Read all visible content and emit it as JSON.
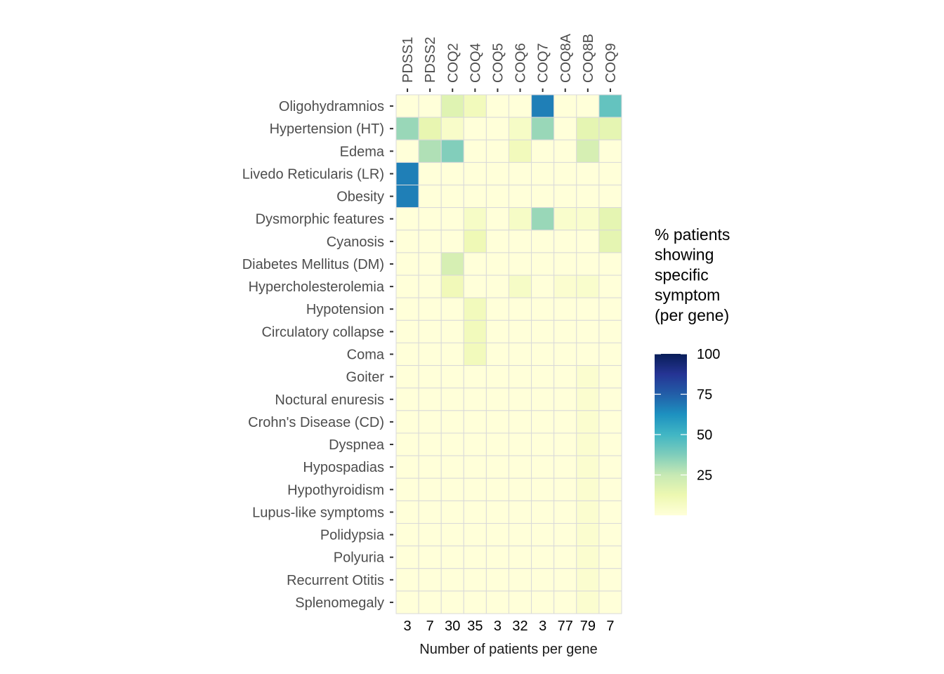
{
  "chart_data": {
    "type": "heatmap",
    "genes": [
      "PDSS1",
      "PDSS2",
      "COQ2",
      "COQ4",
      "COQ5",
      "COQ6",
      "COQ7",
      "COQ8A",
      "COQ8B",
      "COQ9"
    ],
    "patients_per_gene": [
      "3",
      "7",
      "30",
      "35",
      "3",
      "32",
      "3",
      "77",
      "79",
      "7"
    ],
    "symptoms": [
      "Oligohydramnios",
      "Hypertension (HT)",
      "Edema",
      "Livedo Reticularis (LR)",
      "Obesity",
      "Dysmorphic features",
      "Cyanosis",
      "Diabetes Mellitus (DM)",
      "Hypercholesterolemia",
      "Hypotension",
      "Circulatory collapse",
      "Coma",
      "Goiter",
      "Noctural enuresis",
      "Crohn's Disease (CD)",
      "Dyspnea",
      "Hypospadias",
      "Hypothyroidism",
      "Lupus-like symptoms",
      "Polidypsia",
      "Polyuria",
      "Recurrent Otitis",
      "Splenomegaly"
    ],
    "values": [
      [
        0,
        0,
        17,
        9,
        0,
        0,
        67,
        0,
        0,
        43
      ],
      [
        33,
        14,
        5,
        0,
        0,
        6,
        33,
        0,
        15,
        15
      ],
      [
        0,
        29,
        37,
        0,
        0,
        9,
        0,
        0,
        20,
        0
      ],
      [
        67,
        0,
        0,
        0,
        0,
        0,
        0,
        0,
        0,
        0
      ],
      [
        67,
        0,
        0,
        0,
        0,
        0,
        0,
        0,
        0,
        0
      ],
      [
        0,
        0,
        0,
        6,
        0,
        6,
        33,
        4,
        4,
        15
      ],
      [
        0,
        0,
        0,
        11,
        0,
        0,
        0,
        0,
        0,
        15
      ],
      [
        0,
        0,
        20,
        0,
        0,
        0,
        0,
        0,
        0,
        0
      ],
      [
        0,
        0,
        10,
        0,
        0,
        6,
        0,
        3,
        4,
        0
      ],
      [
        0,
        0,
        0,
        9,
        0,
        0,
        0,
        0,
        0,
        0
      ],
      [
        0,
        0,
        0,
        9,
        0,
        0,
        0,
        0,
        0,
        0
      ],
      [
        0,
        0,
        0,
        9,
        0,
        0,
        0,
        0,
        0,
        0
      ],
      [
        0,
        0,
        0,
        0,
        0,
        0,
        0,
        0,
        3,
        0
      ],
      [
        0,
        0,
        0,
        0,
        0,
        0,
        0,
        0,
        3,
        0
      ],
      [
        0,
        0,
        0,
        0,
        0,
        0,
        0,
        0,
        3,
        0
      ],
      [
        0,
        0,
        0,
        0,
        0,
        0,
        0,
        0,
        3,
        0
      ],
      [
        0,
        0,
        0,
        0,
        0,
        0,
        0,
        0,
        3,
        0
      ],
      [
        0,
        0,
        0,
        0,
        0,
        0,
        0,
        0,
        3,
        0
      ],
      [
        0,
        0,
        0,
        0,
        0,
        0,
        0,
        0,
        3,
        0
      ],
      [
        0,
        0,
        0,
        0,
        0,
        0,
        0,
        0,
        3,
        0
      ],
      [
        0,
        0,
        0,
        0,
        0,
        0,
        0,
        0,
        3,
        0
      ],
      [
        0,
        0,
        0,
        0,
        0,
        0,
        0,
        0,
        3,
        0
      ],
      [
        0,
        0,
        0,
        0,
        0,
        0,
        0,
        0,
        3,
        0
      ]
    ],
    "xlabel": "Number of patients per gene",
    "legend": {
      "title_lines": [
        "% patients",
        "showing",
        "specific",
        "symptom",
        "(per gene)"
      ],
      "breaks": [
        25,
        50,
        75,
        100
      ],
      "range": [
        0,
        100
      ],
      "placement": "right"
    },
    "colorscale": [
      "#ffffd9",
      "#edf8b1",
      "#c7e9b4",
      "#7fcdbb",
      "#41b6c4",
      "#1d91c0",
      "#225ea8",
      "#253494",
      "#081d58"
    ],
    "grid_color": "#d9d9d9"
  }
}
